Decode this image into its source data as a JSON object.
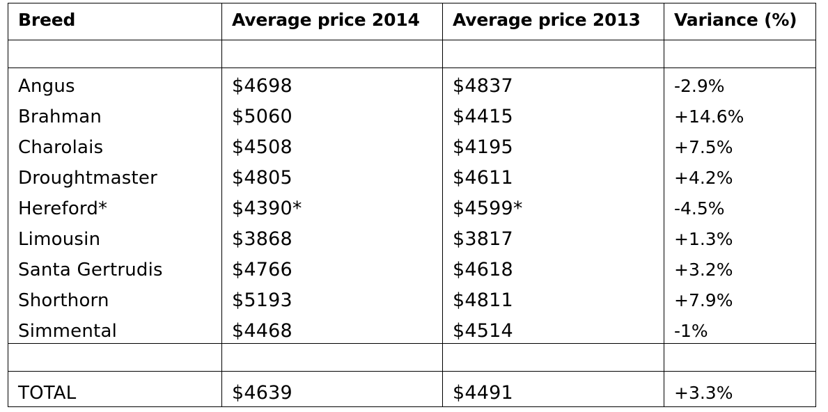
{
  "table": {
    "headers": [
      "Breed",
      "Average price 2014",
      "Average price 2013",
      "Variance (%)"
    ],
    "rows": [
      {
        "breed": "Angus",
        "price_2014": "$4698",
        "price_2013": "$4837",
        "variance": "-2.9%"
      },
      {
        "breed": "Brahman",
        "price_2014": "$5060",
        "price_2013": "$4415",
        "variance": "+14.6%"
      },
      {
        "breed": "Charolais",
        "price_2014": "$4508",
        "price_2013": "$4195",
        "variance": "+7.5%"
      },
      {
        "breed": "Droughtmaster",
        "price_2014": "$4805",
        "price_2013": "$4611",
        "variance": "+4.2%"
      },
      {
        "breed": "Hereford*",
        "price_2014": "$4390*",
        "price_2013": "$4599*",
        "variance": "-4.5%"
      },
      {
        "breed": "Limousin",
        "price_2014": "$3868",
        "price_2013": "$3817",
        "variance": "+1.3%"
      },
      {
        "breed": "Santa Gertrudis",
        "price_2014": "$4766",
        "price_2013": "$4618",
        "variance": "+3.2%"
      },
      {
        "breed": "Shorthorn",
        "price_2014": "$5193",
        "price_2013": "$4811",
        "variance": "+7.9%"
      },
      {
        "breed": "Simmental",
        "price_2014": "$4468",
        "price_2013": "$4514",
        "variance": "-1%"
      }
    ],
    "total": {
      "breed": "TOTAL",
      "price_2014": "$4639",
      "price_2013": "$4491",
      "variance": "+3.3%"
    }
  }
}
